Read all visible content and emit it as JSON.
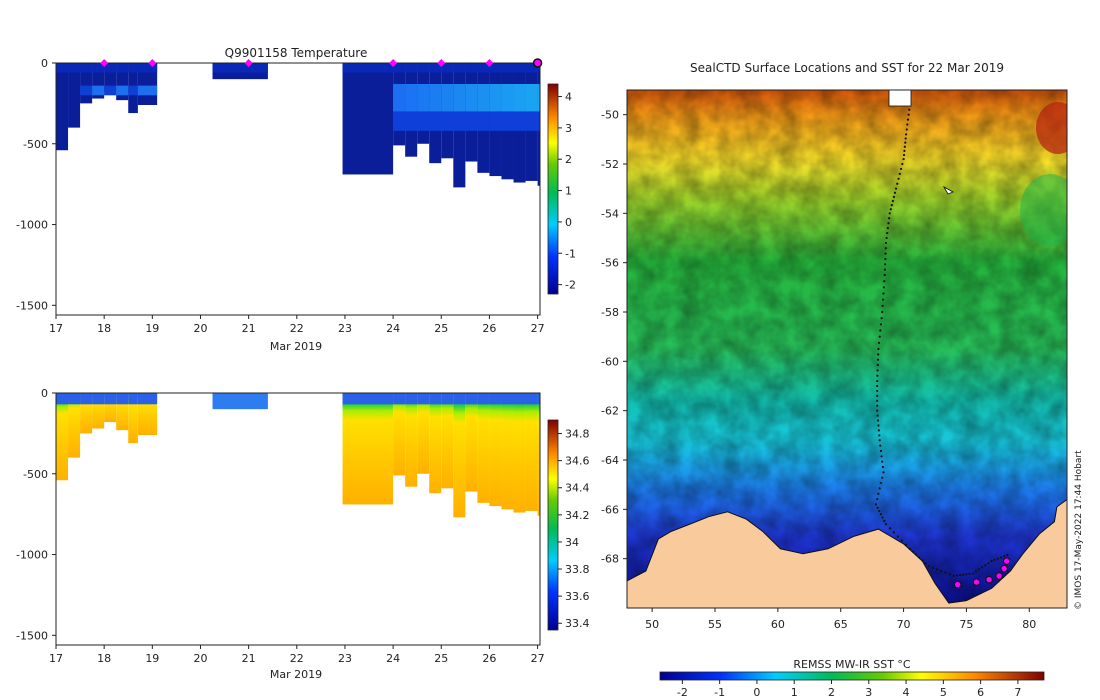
{
  "chart_data": [
    {
      "type": "heatmap",
      "panel": "temperature-section",
      "title": "Q9901158  Temperature",
      "xlabel": "Mar 2019",
      "ylabel": "",
      "x_ticks": [
        "17",
        "18",
        "19",
        "20",
        "21",
        "22",
        "23",
        "24",
        "25",
        "26",
        "27"
      ],
      "x_range": [
        17,
        27.05
      ],
      "y_ticks": [
        0,
        -500,
        -1000,
        -1500
      ],
      "y_range": [
        -1560,
        0
      ],
      "colorbar": {
        "ticks": [
          4,
          3,
          2,
          1,
          0,
          -1,
          -2
        ],
        "range": [
          -2.3,
          4.4
        ]
      },
      "profile_markers_day": [
        18,
        19,
        21,
        24,
        25,
        26
      ],
      "current_profile_day": 27,
      "profiles": [
        {
          "x0": 17.0,
          "x1": 17.25,
          "depth": -540
        },
        {
          "x0": 17.25,
          "x1": 17.5,
          "depth": -400
        },
        {
          "x0": 17.5,
          "x1": 17.75,
          "depth": -250
        },
        {
          "x0": 17.75,
          "x1": 18.0,
          "depth": -220
        },
        {
          "x0": 18.0,
          "x1": 18.25,
          "depth": -180
        },
        {
          "x0": 18.25,
          "x1": 18.5,
          "depth": -230
        },
        {
          "x0": 18.5,
          "x1": 18.7,
          "depth": -310
        },
        {
          "x0": 18.7,
          "x1": 19.1,
          "depth": -260
        },
        {
          "x0": 20.25,
          "x1": 21.4,
          "depth": -100
        },
        {
          "x0": 22.95,
          "x1": 24.0,
          "depth": -690
        },
        {
          "x0": 24.0,
          "x1": 24.25,
          "depth": -510
        },
        {
          "x0": 24.25,
          "x1": 24.5,
          "depth": -580
        },
        {
          "x0": 24.5,
          "x1": 24.75,
          "depth": -500
        },
        {
          "x0": 24.75,
          "x1": 25.0,
          "depth": -620
        },
        {
          "x0": 25.0,
          "x1": 25.25,
          "depth": -590
        },
        {
          "x0": 25.25,
          "x1": 25.5,
          "depth": -770
        },
        {
          "x0": 25.5,
          "x1": 25.75,
          "depth": -610
        },
        {
          "x0": 25.75,
          "x1": 26.0,
          "depth": -680
        },
        {
          "x0": 26.0,
          "x1": 26.25,
          "depth": -700
        },
        {
          "x0": 26.25,
          "x1": 26.5,
          "depth": -720
        },
        {
          "x0": 26.5,
          "x1": 26.75,
          "depth": -740
        },
        {
          "x0": 26.75,
          "x1": 27.0,
          "depth": -730
        },
        {
          "x0": 27.0,
          "x1": 27.05,
          "depth": -760
        }
      ]
    },
    {
      "type": "heatmap",
      "panel": "salinity-section",
      "title": "",
      "xlabel": "Mar 2019",
      "ylabel": "",
      "x_ticks": [
        "17",
        "18",
        "19",
        "20",
        "21",
        "22",
        "23",
        "24",
        "25",
        "26",
        "27"
      ],
      "x_range": [
        17,
        27.05
      ],
      "y_ticks": [
        0,
        -500,
        -1000,
        -1500
      ],
      "y_range": [
        -1560,
        0
      ],
      "colorbar": {
        "ticks": [
          34.8,
          34.6,
          34.4,
          34.2,
          34,
          33.8,
          33.6,
          33.4
        ],
        "range": [
          33.35,
          34.9
        ]
      }
    },
    {
      "type": "heatmap",
      "panel": "sst-map",
      "title": "SealCTD Surface Locations and SST for 22 Mar 2019",
      "xlabel": "",
      "ylabel": "",
      "x_ticks": [
        "50",
        "55",
        "60",
        "65",
        "70",
        "75",
        "80"
      ],
      "x_range": [
        48,
        83
      ],
      "y_ticks": [
        "-50",
        "-52",
        "-54",
        "-56",
        "-58",
        "-60",
        "-62",
        "-64",
        "-66",
        "-68"
      ],
      "y_range": [
        -70,
        -49
      ],
      "colorbar": {
        "label": "REMSS MW-IR SST °C",
        "ticks": [
          "-2",
          "-1",
          "0",
          "1",
          "2",
          "3",
          "4",
          "5",
          "6",
          "7"
        ],
        "range": [
          -2.6,
          7.7
        ]
      },
      "track": [
        [
          70.5,
          -49.6
        ],
        [
          70.2,
          -50.8
        ],
        [
          70.0,
          -51.8
        ],
        [
          69.4,
          -53.0
        ],
        [
          68.9,
          -54.0
        ],
        [
          68.6,
          -55.2
        ],
        [
          68.5,
          -56.5
        ],
        [
          68.3,
          -58.0
        ],
        [
          68.0,
          -59.5
        ],
        [
          67.9,
          -60.8
        ],
        [
          67.9,
          -62.0
        ],
        [
          68.1,
          -63.2
        ],
        [
          68.4,
          -64.5
        ],
        [
          67.8,
          -65.8
        ],
        [
          68.6,
          -66.6
        ],
        [
          70.5,
          -67.6
        ],
        [
          72.0,
          -68.3
        ],
        [
          74.0,
          -68.7
        ],
        [
          75.5,
          -68.6
        ],
        [
          77.0,
          -68.1
        ],
        [
          78.5,
          -67.8
        ]
      ],
      "surface_locations": [
        [
          74.3,
          -69.05
        ],
        [
          75.8,
          -68.95
        ],
        [
          76.8,
          -68.85
        ],
        [
          77.6,
          -68.7
        ],
        [
          78.0,
          -68.4
        ],
        [
          78.2,
          -68.1
        ]
      ]
    }
  ],
  "credit": "© IMOS 17-May-2022 17:44 Hobart",
  "colors": {
    "land": "#f9cb9c",
    "marker": "#ff00ff",
    "no_data": "#ffffff"
  }
}
